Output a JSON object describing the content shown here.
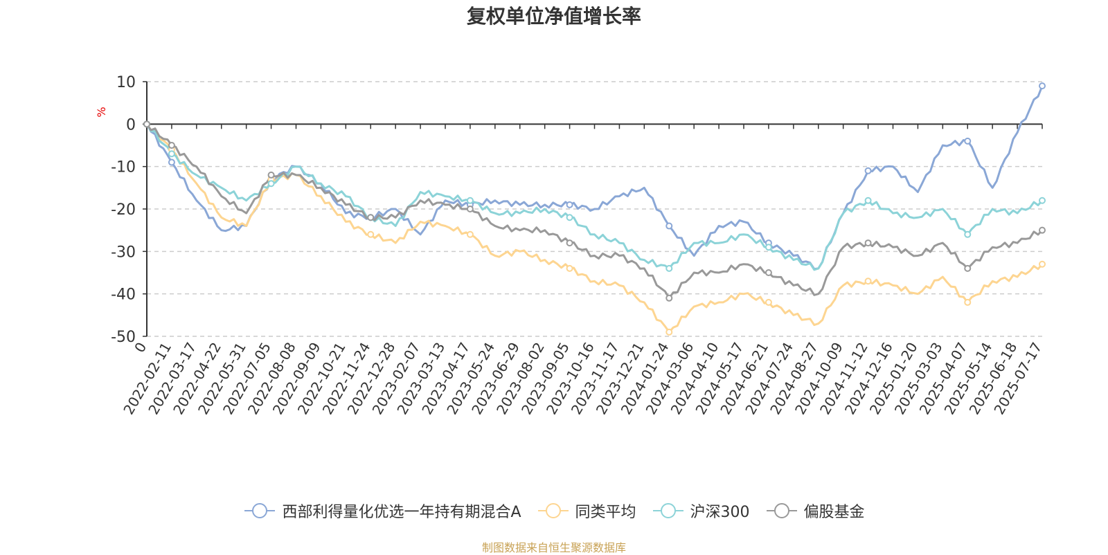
{
  "source_note": "制图数据来自恒生聚源数据库",
  "chart_data": {
    "type": "line",
    "title": "复权单位净值增长率",
    "ylabel": "%",
    "ylim": [
      -50,
      10
    ],
    "yticks": [
      10,
      0,
      -10,
      -20,
      -30,
      -40,
      -50
    ],
    "grid": true,
    "legend_position": "bottom",
    "x_ticks": [
      "0",
      "2022-02-11",
      "2022-03-17",
      "2022-04-22",
      "2022-05-31",
      "2022-07-05",
      "2022-08-08",
      "2022-09-09",
      "2022-10-21",
      "2022-11-24",
      "2022-12-28",
      "2023-02-07",
      "2023-03-13",
      "2023-04-17",
      "2023-05-24",
      "2023-06-29",
      "2023-08-02",
      "2023-09-05",
      "2023-10-16",
      "2023-11-17",
      "2023-12-21",
      "2024-01-24",
      "2024-03-06",
      "2024-04-10",
      "2024-05-17",
      "2024-06-21",
      "2024-07-24",
      "2024-08-27",
      "2024-10-09",
      "2024-11-12",
      "2024-12-16",
      "2025-01-20",
      "2025-03-03",
      "2025-04-07",
      "2025-05-14",
      "2025-06-18",
      "2025-07-17"
    ],
    "series": [
      {
        "name": "西部利得量化优选一年持有期混合A",
        "color": "#8aa7d6",
        "values": [
          0,
          -9,
          -18,
          -25,
          -24,
          -13,
          -10,
          -14,
          -21,
          -22,
          -20,
          -26,
          -18,
          -19,
          -18,
          -19,
          -19,
          -19,
          -20,
          -17,
          -15,
          -24,
          -31,
          -24,
          -23,
          -28,
          -31,
          -34,
          -21,
          -11,
          -10,
          -16,
          -5,
          -4,
          -15,
          -2,
          9
        ]
      },
      {
        "name": "同类平均",
        "color": "#fdd591",
        "values": [
          0,
          -6,
          -14,
          -22,
          -24,
          -13,
          -12,
          -17,
          -23,
          -26,
          -28,
          -23,
          -24,
          -26,
          -31,
          -30,
          -32,
          -34,
          -37,
          -38,
          -42,
          -49,
          -43,
          -42,
          -40,
          -42,
          -45,
          -47,
          -38,
          -37,
          -38,
          -40,
          -36,
          -42,
          -37,
          -36,
          -33
        ]
      },
      {
        "name": "沪深300",
        "color": "#8cd3d8",
        "values": [
          0,
          -7,
          -12,
          -15,
          -18,
          -14,
          -10,
          -14,
          -17,
          -22,
          -24,
          -16,
          -17,
          -18,
          -21,
          -21,
          -20,
          -22,
          -26,
          -28,
          -32,
          -34,
          -28,
          -28,
          -26,
          -29,
          -32,
          -34,
          -21,
          -18,
          -21,
          -22,
          -20,
          -26,
          -20,
          -21,
          -18
        ]
      },
      {
        "name": "偏股基金",
        "color": "#999999",
        "values": [
          0,
          -5,
          -10,
          -17,
          -21,
          -12,
          -12,
          -15,
          -19,
          -22,
          -22,
          -18,
          -19,
          -20,
          -24,
          -25,
          -25,
          -28,
          -31,
          -31,
          -34,
          -41,
          -35,
          -35,
          -33,
          -35,
          -38,
          -40,
          -29,
          -28,
          -29,
          -31,
          -28,
          -34,
          -29,
          -28,
          -25
        ]
      }
    ]
  }
}
